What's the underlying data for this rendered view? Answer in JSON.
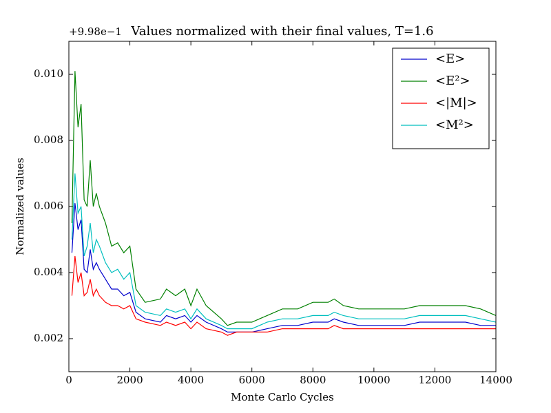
{
  "chart_data": {
    "type": "line",
    "title": "Values normalized with their final values, T=1.6",
    "offset_label": "+9.98e−1",
    "xlabel": "Monte Carlo Cycles",
    "ylabel": "Normalized values",
    "x": [
      100,
      200,
      300,
      400,
      500,
      600,
      700,
      800,
      900,
      1000,
      1200,
      1400,
      1600,
      1800,
      2000,
      2200,
      2500,
      3000,
      3200,
      3500,
      3800,
      4000,
      4200,
      4500,
      5000,
      5200,
      5500,
      6000,
      6500,
      7000,
      7500,
      8000,
      8500,
      8700,
      9000,
      9500,
      10000,
      10500,
      11000,
      11500,
      12000,
      12500,
      13000,
      13500,
      14000
    ],
    "series": [
      {
        "name": "<E>",
        "color": "#0000cc",
        "values": [
          0.0046,
          0.0061,
          0.0053,
          0.0056,
          0.0041,
          0.004,
          0.0047,
          0.0041,
          0.0043,
          0.0041,
          0.0038,
          0.0035,
          0.0035,
          0.0033,
          0.0034,
          0.0028,
          0.0026,
          0.0025,
          0.0027,
          0.0026,
          0.0027,
          0.0025,
          0.0027,
          0.0025,
          0.0023,
          0.0022,
          0.0022,
          0.0022,
          0.0023,
          0.0024,
          0.0024,
          0.0025,
          0.0025,
          0.0026,
          0.0025,
          0.0024,
          0.0024,
          0.0024,
          0.0024,
          0.0025,
          0.0025,
          0.0025,
          0.0025,
          0.0024,
          0.0024
        ]
      },
      {
        "name": "<E²>",
        "color": "#008000",
        "values": [
          0.0055,
          0.0101,
          0.0084,
          0.0091,
          0.0062,
          0.006,
          0.0074,
          0.006,
          0.0064,
          0.006,
          0.0055,
          0.0048,
          0.0049,
          0.0046,
          0.0048,
          0.0035,
          0.0031,
          0.0032,
          0.0035,
          0.0033,
          0.0035,
          0.003,
          0.0035,
          0.003,
          0.0026,
          0.0024,
          0.0025,
          0.0025,
          0.0027,
          0.0029,
          0.0029,
          0.0031,
          0.0031,
          0.0032,
          0.003,
          0.0029,
          0.0029,
          0.0029,
          0.0029,
          0.003,
          0.003,
          0.003,
          0.003,
          0.0029,
          0.0027
        ]
      },
      {
        "name": "<|M|>",
        "color": "#ff0000",
        "values": [
          0.0033,
          0.0045,
          0.0037,
          0.004,
          0.0033,
          0.0034,
          0.0038,
          0.0033,
          0.0035,
          0.0033,
          0.0031,
          0.003,
          0.003,
          0.0029,
          0.003,
          0.0026,
          0.0025,
          0.0024,
          0.0025,
          0.0024,
          0.0025,
          0.0023,
          0.0025,
          0.0023,
          0.0022,
          0.0021,
          0.0022,
          0.0022,
          0.0022,
          0.0023,
          0.0023,
          0.0023,
          0.0023,
          0.0024,
          0.0023,
          0.0023,
          0.0023,
          0.0023,
          0.0023,
          0.0023,
          0.0023,
          0.0023,
          0.0023,
          0.0023,
          0.0023
        ]
      },
      {
        "name": "<M²>",
        "color": "#00bfbf",
        "values": [
          0.005,
          0.007,
          0.0058,
          0.006,
          0.0045,
          0.0048,
          0.0055,
          0.0046,
          0.005,
          0.0048,
          0.0043,
          0.004,
          0.0041,
          0.0038,
          0.004,
          0.003,
          0.0028,
          0.0027,
          0.0029,
          0.0028,
          0.0029,
          0.0026,
          0.0029,
          0.0026,
          0.0024,
          0.0023,
          0.0023,
          0.0023,
          0.0025,
          0.0026,
          0.0026,
          0.0027,
          0.0027,
          0.0028,
          0.0027,
          0.0026,
          0.0026,
          0.0026,
          0.0026,
          0.0027,
          0.0027,
          0.0027,
          0.0027,
          0.0026,
          0.0025
        ]
      }
    ],
    "xlim": [
      0,
      14000
    ],
    "xticks": [
      0,
      2000,
      4000,
      6000,
      8000,
      10000,
      12000,
      14000
    ],
    "ylim": [
      0.001,
      0.011
    ],
    "yticks": [
      0.002,
      0.004,
      0.006,
      0.008,
      {
        "value": 0.01,
        "label": "0.010"
      }
    ],
    "legend": "upper right",
    "grid": false
  }
}
